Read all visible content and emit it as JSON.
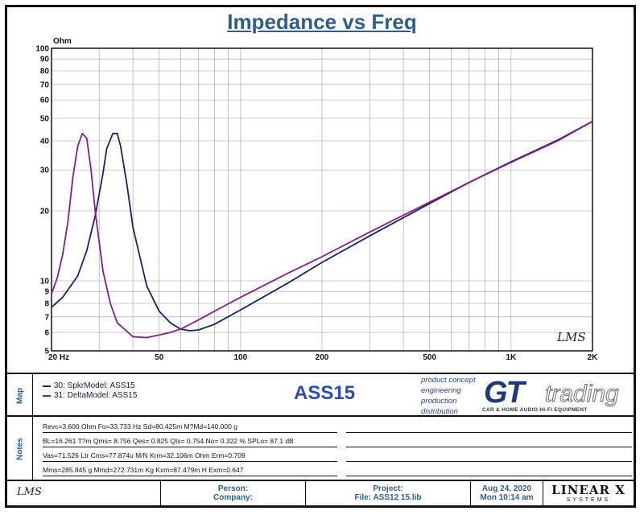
{
  "chart_data": {
    "type": "line",
    "title": "Impedance vs Freq",
    "ylabel": "Ohm",
    "xlabel": "",
    "x_scale": "log",
    "y_scale": "log",
    "xlim": [
      20,
      2000
    ],
    "ylim": [
      5,
      100
    ],
    "x_ticks": [
      20,
      50,
      100,
      200,
      500,
      1000,
      2000
    ],
    "x_tick_labels": [
      "20  Hz",
      "50",
      "100",
      "200",
      "500",
      "1K",
      "2K"
    ],
    "y_ticks": [
      5,
      6,
      7,
      8,
      9,
      10,
      20,
      30,
      40,
      50,
      60,
      70,
      80,
      90,
      100
    ],
    "y_tick_labels": [
      "5",
      "6",
      "7",
      "8",
      "9",
      "10",
      "20",
      "30",
      "40",
      "50",
      "60",
      "70",
      "80",
      "90",
      "100"
    ],
    "grid": true,
    "series": [
      {
        "name": "30: SpkrModel: ASS15",
        "color": "#1b1f6e",
        "x": [
          20,
          22,
          25,
          27,
          29,
          31,
          32,
          33.7,
          35,
          36,
          38,
          40,
          45,
          50,
          55,
          60,
          65,
          70,
          80,
          100,
          150,
          200,
          300,
          500,
          700,
          1000,
          1500,
          2000
        ],
        "y": [
          7.7,
          8.5,
          10.5,
          13.5,
          19,
          29,
          37,
          43,
          43,
          38,
          26,
          17,
          9.5,
          7.4,
          6.6,
          6.2,
          6.1,
          6.15,
          6.5,
          7.5,
          9.8,
          12.0,
          15.6,
          21.5,
          26.5,
          32.5,
          40.5,
          48.5
        ]
      },
      {
        "name": "31: DeltaModel: ASS15",
        "color": "#8a1e80",
        "x": [
          20,
          21,
          22,
          23,
          24,
          25,
          26,
          27,
          28,
          29,
          31,
          33,
          35,
          40,
          45,
          50,
          55,
          60,
          70,
          80,
          100,
          150,
          200,
          300,
          500,
          700,
          1000,
          1500,
          2000
        ],
        "y": [
          8.8,
          10.3,
          13,
          18,
          28,
          38,
          43,
          41,
          30,
          20,
          11,
          8,
          6.6,
          5.75,
          5.7,
          5.85,
          6.0,
          6.2,
          6.8,
          7.4,
          8.5,
          10.8,
          12.7,
          16.2,
          21.8,
          26.5,
          32.3,
          40.2,
          48.5
        ]
      }
    ],
    "watermark": "LMS"
  },
  "map": {
    "label": "Map",
    "legend": [
      {
        "text": "30: SpkrModel: ASS15",
        "color": "#1b1f6e"
      },
      {
        "text": "31: DeltaModel: ASS15",
        "color": "#8a1e80"
      }
    ],
    "model_name": "ASS15",
    "brand_lines": [
      "product concept",
      "engineering",
      "production",
      "distribution"
    ],
    "brand_logo": "GT",
    "brand_logo_word": "trading",
    "brand_tagline": "CAR & HOME AUDIO HI-FI EQUIPMENT"
  },
  "notes": {
    "label": "Notes",
    "lines": [
      "Revc=3.600 Ohm  Fo=33.733 Hz  Sd=80.425m  M?Md=140.000 g",
      "BL=16.261 T?m  Qms= 8.756  Qes= 0.825  Qts= 0.754  No= 0.322 %  SPLo= 87.1 dB",
      "Vas=71.526 Ltr  Cms=77.874u M/N  Krm=32.106m Ohm  Erm=0.709",
      "Mms=285.845 g  Mmd=272.731m Kg  Kxm=87.479m H  Exm=0.647"
    ]
  },
  "footer": {
    "logo": "LMS",
    "person_label": "Person:",
    "company_label": "Company:",
    "project_label": "Project:",
    "file_label": "File: ASS12 15.lib",
    "date": "Aug 24, 2020",
    "time": "Mon 10:14 am",
    "brand": "LINEAR X",
    "brand_sub": "SYSTEMS"
  }
}
